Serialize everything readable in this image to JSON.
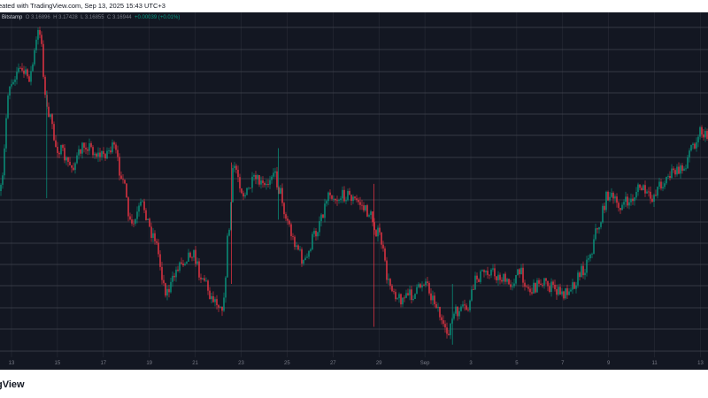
{
  "header": {
    "caption": "eated with TradingView.com, Sep 13, 2025 15:43 UTC+3"
  },
  "legend": {
    "symbol": "Bitstamp",
    "open": "O 3.16896",
    "high": "H 3.17428",
    "low": "L 3.16855",
    "close": "C 3.16944",
    "change": "+0.00039 (+0.01%)"
  },
  "footer": {
    "brand": "gView"
  },
  "colors": {
    "background": "#131722",
    "grid": "#434651",
    "up": "#089981",
    "down": "#f23645",
    "axis_text": "#787b86"
  },
  "chart_data": {
    "type": "candlestick",
    "grid": true,
    "x_axis": {
      "ticks": [
        "13",
        "15",
        "17",
        "19",
        "21",
        "23",
        "25",
        "27",
        "29",
        "Sep",
        "3",
        "5",
        "7",
        "9",
        "11",
        "13"
      ]
    },
    "y_axis": {
      "visible": false
    },
    "series": [
      {
        "price_path": [
          [
            0,
            0.5
          ],
          [
            0.012,
            0.2
          ],
          [
            0.025,
            0.16
          ],
          [
            0.04,
            0.18
          ],
          [
            0.055,
            0.05
          ],
          [
            0.065,
            0.27
          ],
          [
            0.08,
            0.38
          ],
          [
            0.1,
            0.43
          ],
          [
            0.12,
            0.37
          ],
          [
            0.14,
            0.4
          ],
          [
            0.16,
            0.38
          ],
          [
            0.17,
            0.45
          ],
          [
            0.185,
            0.6
          ],
          [
            0.2,
            0.54
          ],
          [
            0.215,
            0.62
          ],
          [
            0.235,
            0.78
          ],
          [
            0.255,
            0.7
          ],
          [
            0.27,
            0.67
          ],
          [
            0.285,
            0.74
          ],
          [
            0.3,
            0.8
          ],
          [
            0.315,
            0.82
          ],
          [
            0.322,
            0.62
          ],
          [
            0.33,
            0.43
          ],
          [
            0.345,
            0.51
          ],
          [
            0.36,
            0.47
          ],
          [
            0.375,
            0.49
          ],
          [
            0.385,
            0.44
          ],
          [
            0.395,
            0.5
          ],
          [
            0.405,
            0.58
          ],
          [
            0.415,
            0.64
          ],
          [
            0.43,
            0.7
          ],
          [
            0.445,
            0.62
          ],
          [
            0.455,
            0.56
          ],
          [
            0.465,
            0.5
          ],
          [
            0.475,
            0.52
          ],
          [
            0.49,
            0.51
          ],
          [
            0.505,
            0.53
          ],
          [
            0.52,
            0.56
          ],
          [
            0.535,
            0.62
          ],
          [
            0.55,
            0.76
          ],
          [
            0.565,
            0.8
          ],
          [
            0.585,
            0.79
          ],
          [
            0.6,
            0.75
          ],
          [
            0.615,
            0.81
          ],
          [
            0.63,
            0.9
          ],
          [
            0.645,
            0.84
          ],
          [
            0.66,
            0.83
          ],
          [
            0.675,
            0.74
          ],
          [
            0.69,
            0.72
          ],
          [
            0.705,
            0.74
          ],
          [
            0.72,
            0.76
          ],
          [
            0.735,
            0.73
          ],
          [
            0.75,
            0.78
          ],
          [
            0.765,
            0.75
          ],
          [
            0.78,
            0.77
          ],
          [
            0.795,
            0.79
          ],
          [
            0.81,
            0.76
          ],
          [
            0.825,
            0.72
          ],
          [
            0.835,
            0.67
          ],
          [
            0.845,
            0.6
          ],
          [
            0.86,
            0.51
          ],
          [
            0.875,
            0.54
          ],
          [
            0.89,
            0.53
          ],
          [
            0.905,
            0.49
          ],
          [
            0.92,
            0.52
          ],
          [
            0.935,
            0.48
          ],
          [
            0.95,
            0.45
          ],
          [
            0.965,
            0.44
          ],
          [
            0.98,
            0.37
          ],
          [
            0.99,
            0.33
          ],
          [
            1.0,
            0.35
          ]
        ]
      }
    ]
  }
}
